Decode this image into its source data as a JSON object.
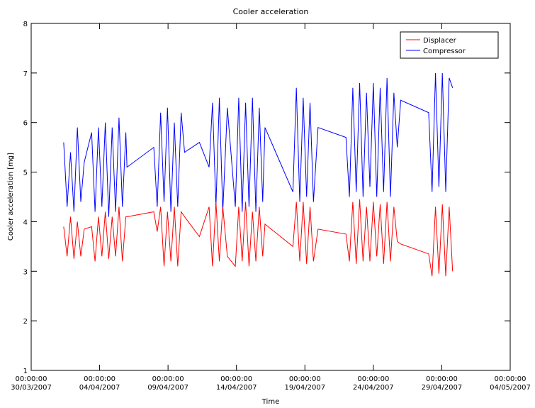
{
  "chart_data": {
    "type": "line",
    "title": "Cooler acceleration",
    "xlabel": "Time",
    "ylabel": "Cooler acceleration [mg]",
    "ylim": [
      1,
      8
    ],
    "yticks": [
      1,
      2,
      3,
      4,
      5,
      6,
      7,
      8
    ],
    "xlim": [
      "2007-03-30T00:00",
      "2007-05-04T00:00"
    ],
    "xticks": [
      {
        "value": "2007-03-30T00:00",
        "label": [
          "00:00:00",
          "30/03/2007"
        ]
      },
      {
        "value": "2007-04-04T00:00",
        "label": [
          "00:00:00",
          "04/04/2007"
        ]
      },
      {
        "value": "2007-04-09T00:00",
        "label": [
          "00:00:00",
          "09/04/2007"
        ]
      },
      {
        "value": "2007-04-14T00:00",
        "label": [
          "00:00:00",
          "14/04/2007"
        ]
      },
      {
        "value": "2007-04-19T00:00",
        "label": [
          "00:00:00",
          "19/04/2007"
        ]
      },
      {
        "value": "2007-04-24T00:00",
        "label": [
          "00:00:00",
          "24/04/2007"
        ]
      },
      {
        "value": "2007-04-29T00:00",
        "label": [
          "00:00:00",
          "29/04/2007"
        ]
      },
      {
        "value": "2007-05-04T00:00",
        "label": [
          "00:00:00",
          "04/05/2007"
        ]
      }
    ],
    "legend": "upper right",
    "x": [
      "2007-04-01T09:00",
      "2007-04-01T15:00",
      "2007-04-01T21:00",
      "2007-04-02T03:00",
      "2007-04-02T09:00",
      "2007-04-02T15:00",
      "2007-04-02T21:00",
      "2007-04-03T10:00",
      "2007-04-03T16:00",
      "2007-04-03T22:00",
      "2007-04-04T04:00",
      "2007-04-04T10:00",
      "2007-04-04T16:00",
      "2007-04-04T22:00",
      "2007-04-05T04:00",
      "2007-04-05T10:00",
      "2007-04-05T16:00",
      "2007-04-05T22:00",
      "2007-04-06T00:00",
      "2007-04-07T23:00",
      "2007-04-08T05:00",
      "2007-04-08T11:00",
      "2007-04-08T17:00",
      "2007-04-08T23:00",
      "2007-04-09T05:00",
      "2007-04-09T11:00",
      "2007-04-09T17:00",
      "2007-04-09T23:00",
      "2007-04-10T05:00",
      "2007-04-11T07:00",
      "2007-04-12T00:00",
      "2007-04-12T06:00",
      "2007-04-12T12:00",
      "2007-04-12T18:00",
      "2007-04-13T00:00",
      "2007-04-13T08:00",
      "2007-04-13T22:00",
      "2007-04-14T04:00",
      "2007-04-14T10:00",
      "2007-04-14T16:00",
      "2007-04-14T22:00",
      "2007-04-15T04:00",
      "2007-04-15T10:00",
      "2007-04-15T16:00",
      "2007-04-15T22:00",
      "2007-04-16T02:00",
      "2007-04-18T03:00",
      "2007-04-18T09:00",
      "2007-04-18T15:00",
      "2007-04-18T21:00",
      "2007-04-19T03:00",
      "2007-04-19T09:00",
      "2007-04-19T15:00",
      "2007-04-19T23:00",
      "2007-04-22T00:00",
      "2007-04-22T06:00",
      "2007-04-22T12:00",
      "2007-04-22T18:00",
      "2007-04-23T00:00",
      "2007-04-23T06:00",
      "2007-04-23T12:00",
      "2007-04-23T18:00",
      "2007-04-24T00:00",
      "2007-04-24T06:00",
      "2007-04-24T12:00",
      "2007-04-24T18:00",
      "2007-04-25T00:00",
      "2007-04-25T06:00",
      "2007-04-25T12:00",
      "2007-04-25T18:00",
      "2007-04-26T00:00",
      "2007-04-28T01:00",
      "2007-04-28T07:00",
      "2007-04-28T13:00",
      "2007-04-28T19:00",
      "2007-04-29T01:00",
      "2007-04-29T07:00",
      "2007-04-29T13:00",
      "2007-04-29T19:00"
    ],
    "series": [
      {
        "name": "Compressor",
        "color": "#0000ff",
        "values": [
          5.6,
          4.3,
          5.4,
          4.2,
          5.9,
          4.4,
          5.2,
          5.8,
          4.2,
          5.9,
          4.3,
          6.0,
          4.1,
          5.9,
          4.2,
          6.1,
          4.3,
          5.8,
          5.1,
          5.5,
          4.3,
          6.2,
          4.4,
          6.3,
          4.2,
          6.0,
          4.3,
          6.2,
          5.4,
          5.6,
          5.1,
          6.4,
          4.3,
          6.5,
          4.2,
          6.3,
          4.3,
          6.5,
          4.2,
          6.4,
          4.3,
          6.5,
          4.2,
          6.3,
          4.4,
          5.9,
          4.6,
          6.7,
          4.4,
          6.5,
          4.5,
          6.4,
          4.4,
          5.9,
          5.7,
          4.5,
          6.7,
          4.6,
          6.8,
          4.5,
          6.6,
          4.7,
          6.8,
          4.5,
          6.7,
          4.6,
          6.9,
          4.5,
          6.6,
          5.5,
          6.45,
          6.2,
          4.6,
          7.0,
          4.7,
          7.0,
          4.6,
          6.9,
          6.7
        ]
      },
      {
        "name": "Displacer",
        "color": "#ff0000",
        "values": [
          3.9,
          3.3,
          4.1,
          3.25,
          4.0,
          3.3,
          3.85,
          3.9,
          3.2,
          4.1,
          3.3,
          4.2,
          3.25,
          4.1,
          3.3,
          4.3,
          3.2,
          4.1,
          4.1,
          4.2,
          3.8,
          4.3,
          3.1,
          4.2,
          3.2,
          4.3,
          3.1,
          4.2,
          4.1,
          3.7,
          4.3,
          3.1,
          4.4,
          3.2,
          4.3,
          3.3,
          3.1,
          4.3,
          3.2,
          4.4,
          3.1,
          4.2,
          3.2,
          4.3,
          3.3,
          3.95,
          3.5,
          4.4,
          3.2,
          4.4,
          3.15,
          4.3,
          3.2,
          3.85,
          3.75,
          3.2,
          4.4,
          3.15,
          4.45,
          3.2,
          4.3,
          3.2,
          4.4,
          3.3,
          4.35,
          3.15,
          4.4,
          3.2,
          4.3,
          3.6,
          3.55,
          3.35,
          2.9,
          4.3,
          2.95,
          4.35,
          2.9,
          4.3,
          3.0
        ]
      }
    ]
  }
}
